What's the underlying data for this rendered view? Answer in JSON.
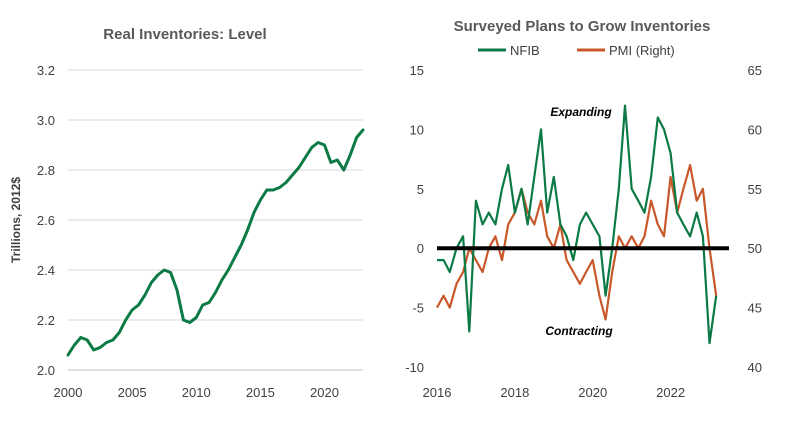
{
  "chart_data": [
    {
      "type": "line",
      "title": "Real Inventories: Level",
      "xlabel": "",
      "ylabel": "Trillions, 2012$",
      "xlim": [
        2000,
        2023
      ],
      "ylim": [
        2.0,
        3.2
      ],
      "x_ticks": [
        "2000",
        "2005",
        "2010",
        "2015",
        "2020"
      ],
      "y_ticks": [
        "2.0",
        "2.2",
        "2.4",
        "2.6",
        "2.8",
        "3.0",
        "3.2"
      ],
      "grid": true,
      "colors": {
        "line": "#0b7a45"
      },
      "series": [
        {
          "x": [
            2000.0,
            2000.5,
            2001.0,
            2001.5,
            2002.0,
            2002.5,
            2003.0,
            2003.5,
            2004.0,
            2004.5,
            2005.0,
            2005.5,
            2006.0,
            2006.5,
            2007.0,
            2007.5,
            2008.0,
            2008.5,
            2009.0,
            2009.5,
            2010.0,
            2010.5,
            2011.0,
            2011.5,
            2012.0,
            2012.5,
            2013.0,
            2013.5,
            2014.0,
            2014.5,
            2015.0,
            2015.5,
            2016.0,
            2016.5,
            2017.0,
            2017.5,
            2018.0,
            2018.5,
            2019.0,
            2019.5,
            2020.0,
            2020.5,
            2021.0,
            2021.5,
            2022.0,
            2022.5,
            2023.0
          ],
          "values": [
            2.06,
            2.1,
            2.13,
            2.12,
            2.08,
            2.09,
            2.11,
            2.12,
            2.15,
            2.2,
            2.24,
            2.26,
            2.3,
            2.35,
            2.38,
            2.4,
            2.39,
            2.32,
            2.2,
            2.19,
            2.21,
            2.26,
            2.27,
            2.31,
            2.36,
            2.4,
            2.45,
            2.5,
            2.56,
            2.63,
            2.68,
            2.72,
            2.72,
            2.73,
            2.75,
            2.78,
            2.81,
            2.85,
            2.89,
            2.91,
            2.9,
            2.83,
            2.84,
            2.8,
            2.86,
            2.93,
            2.96
          ]
        }
      ]
    },
    {
      "type": "line",
      "title": "Surveyed Plans to Grow Inventories",
      "xlabel": "",
      "ylabel": "",
      "xlim": [
        2016,
        2023.5
      ],
      "ylim": [
        -10,
        15
      ],
      "y2lim": [
        40,
        65
      ],
      "x_ticks": [
        "2016",
        "2018",
        "2020",
        "2022"
      ],
      "y_ticks": [
        "-10",
        "-5",
        "0",
        "5",
        "10",
        "15"
      ],
      "y2_ticks": [
        "40",
        "45",
        "50",
        "55",
        "60",
        "65"
      ],
      "grid": false,
      "legend_position": "top-center",
      "annotations": [
        "Expanding",
        "Contracting"
      ],
      "colors": {
        "NFIB": "#0b7a45",
        "PMI": "#c8582a",
        "zero_line": "#000000"
      },
      "series": [
        {
          "name": "NFIB",
          "axis": "left",
          "x": [
            2016.0,
            2016.17,
            2016.33,
            2016.5,
            2016.67,
            2016.83,
            2017.0,
            2017.17,
            2017.33,
            2017.5,
            2017.67,
            2017.83,
            2018.0,
            2018.17,
            2018.33,
            2018.5,
            2018.67,
            2018.83,
            2019.0,
            2019.17,
            2019.33,
            2019.5,
            2019.67,
            2019.83,
            2020.0,
            2020.17,
            2020.33,
            2020.5,
            2020.67,
            2020.83,
            2021.0,
            2021.17,
            2021.33,
            2021.5,
            2021.67,
            2021.83,
            2022.0,
            2022.17,
            2022.33,
            2022.5,
            2022.67,
            2022.83,
            2023.0,
            2023.17
          ],
          "values": [
            -1,
            -1,
            -2,
            0,
            1,
            -7,
            4,
            2,
            3,
            2,
            5,
            7,
            3,
            5,
            2,
            6,
            10,
            3,
            6,
            2,
            1,
            -1,
            2,
            3,
            2,
            1,
            -4,
            0,
            5,
            12,
            5,
            4,
            3,
            6,
            11,
            10,
            8,
            3,
            2,
            1,
            3,
            1,
            -8,
            -4
          ]
        },
        {
          "name": "PMI (Right)",
          "axis": "right",
          "x": [
            2016.0,
            2016.17,
            2016.33,
            2016.5,
            2016.67,
            2016.83,
            2017.0,
            2017.17,
            2017.33,
            2017.5,
            2017.67,
            2017.83,
            2018.0,
            2018.17,
            2018.33,
            2018.5,
            2018.67,
            2018.83,
            2019.0,
            2019.17,
            2019.33,
            2019.5,
            2019.67,
            2019.83,
            2020.0,
            2020.17,
            2020.33,
            2020.5,
            2020.67,
            2020.83,
            2021.0,
            2021.17,
            2021.33,
            2021.5,
            2021.67,
            2021.83,
            2022.0,
            2022.17,
            2022.33,
            2022.5,
            2022.67,
            2022.83,
            2023.0,
            2023.17
          ],
          "values": [
            45,
            46,
            45,
            47,
            48,
            50,
            49,
            48,
            50,
            51,
            49,
            52,
            53,
            55,
            53,
            52,
            54,
            51,
            50,
            52,
            49,
            48,
            47,
            48,
            49,
            46,
            44,
            48,
            51,
            50,
            51,
            50,
            51,
            54,
            52,
            51,
            56,
            53,
            55,
            57,
            54,
            55,
            50,
            46
          ]
        }
      ]
    }
  ]
}
